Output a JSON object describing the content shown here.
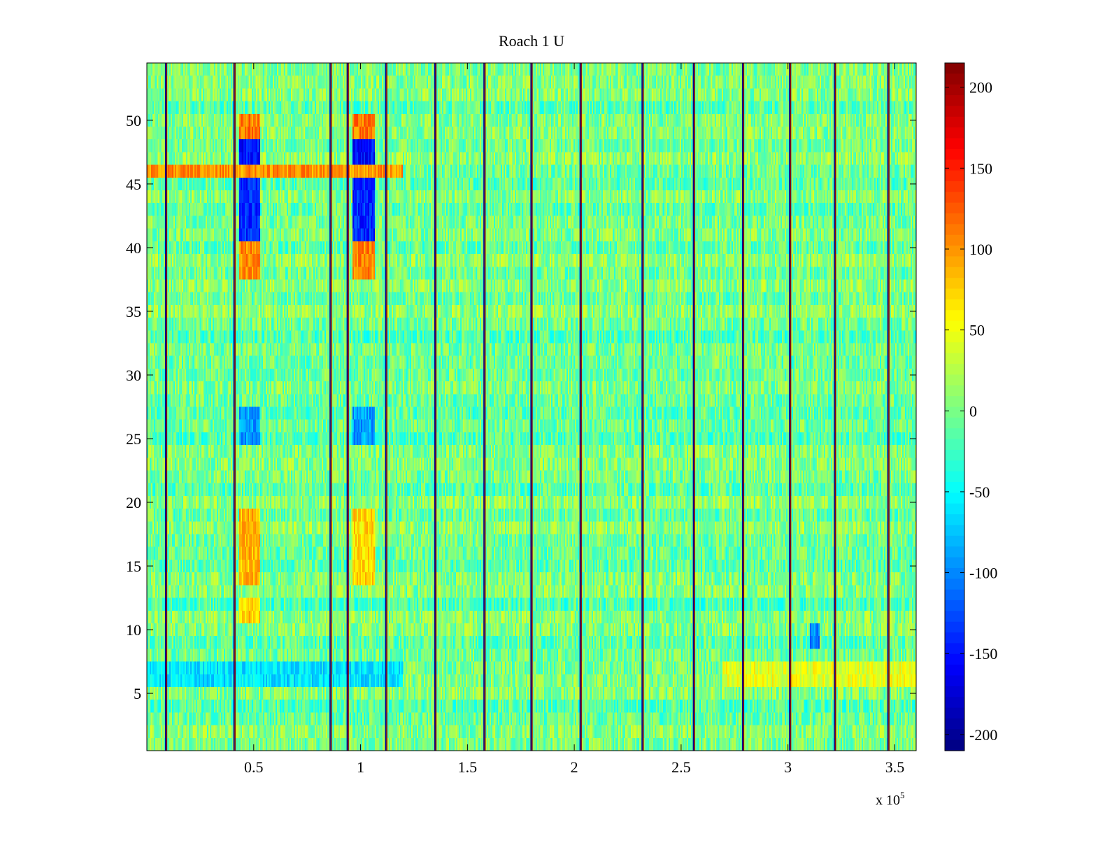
{
  "chart_data": {
    "type": "heatmap",
    "title": "Roach 1 U",
    "xlabel": "",
    "ylabel": "",
    "x_multiplier_label": "x 10",
    "x_multiplier_exponent": "5",
    "xlim": [
      0.0,
      3.6
    ],
    "ylim": [
      0.5,
      54.5
    ],
    "xticks": [
      0.5,
      1,
      1.5,
      2,
      2.5,
      3,
      3.5
    ],
    "xtick_labels": [
      "0.5",
      "1",
      "1.5",
      "2",
      "2.5",
      "3",
      "3.5"
    ],
    "yticks": [
      5,
      10,
      15,
      20,
      25,
      30,
      35,
      40,
      45,
      50
    ],
    "ytick_labels": [
      "5",
      "10",
      "15",
      "20",
      "25",
      "30",
      "35",
      "40",
      "45",
      "50"
    ],
    "rows": 54,
    "colormap": "jet",
    "colorbar": {
      "clim": [
        -210,
        215
      ],
      "ticks": [
        200,
        150,
        100,
        50,
        0,
        -50,
        -100,
        -150,
        -200
      ],
      "tick_labels": [
        "200",
        "150",
        "100",
        "50",
        "0",
        "-50",
        "-100",
        "-150",
        "-200"
      ]
    },
    "baseline_value": -5,
    "spike_columns_x": [
      0.09,
      0.41,
      0.86,
      0.94,
      1.12,
      1.35,
      1.58,
      1.8,
      2.03,
      2.32,
      2.56,
      2.79,
      3.01,
      3.22,
      3.47
    ],
    "spike_values": [
      210,
      -200
    ],
    "patches": [
      {
        "x": [
          0.43,
          0.53
        ],
        "rows": [
          49,
          50
        ],
        "value": 110
      },
      {
        "x": [
          0.43,
          0.53
        ],
        "rows": [
          47,
          48
        ],
        "value": -150
      },
      {
        "x": [
          0.43,
          0.53
        ],
        "rows": [
          41,
          45
        ],
        "value": -140
      },
      {
        "x": [
          0.43,
          0.53
        ],
        "rows": [
          38,
          40
        ],
        "value": 105
      },
      {
        "x": [
          0.43,
          0.53
        ],
        "rows": [
          25,
          27
        ],
        "value": -90
      },
      {
        "x": [
          0.43,
          0.53
        ],
        "rows": [
          14,
          19
        ],
        "value": 85
      },
      {
        "x": [
          0.43,
          0.53
        ],
        "rows": [
          11,
          12
        ],
        "value": 75
      },
      {
        "x": [
          0.96,
          1.07
        ],
        "rows": [
          49,
          50
        ],
        "value": 110
      },
      {
        "x": [
          0.96,
          1.07
        ],
        "rows": [
          47,
          48
        ],
        "value": -150
      },
      {
        "x": [
          0.96,
          1.07
        ],
        "rows": [
          41,
          45
        ],
        "value": -140
      },
      {
        "x": [
          0.96,
          1.07
        ],
        "rows": [
          38,
          40
        ],
        "value": 105
      },
      {
        "x": [
          0.96,
          1.07
        ],
        "rows": [
          25,
          27
        ],
        "value": -90
      },
      {
        "x": [
          0.96,
          1.07
        ],
        "rows": [
          14,
          19
        ],
        "value": 70
      },
      {
        "x": [
          0.0,
          1.2
        ],
        "rows": [
          46,
          46
        ],
        "value": 100
      },
      {
        "x": [
          0.0,
          1.2
        ],
        "rows": [
          6,
          7
        ],
        "value": -60
      },
      {
        "x": [
          2.7,
          3.6
        ],
        "rows": [
          6,
          7
        ],
        "value": 45
      },
      {
        "x": [
          3.1,
          3.15
        ],
        "rows": [
          9,
          10
        ],
        "value": -100
      }
    ]
  }
}
